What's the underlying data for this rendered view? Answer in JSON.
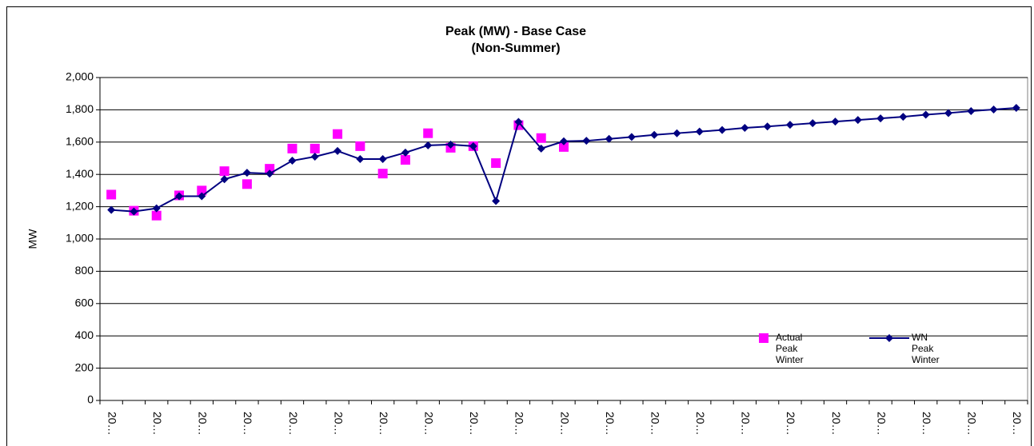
{
  "chart_data": {
    "type": "line",
    "title": "Peak (MW) - Base Case",
    "subtitle": "(Non-Summer)",
    "y_label": "MW",
    "categories": [
      "20…",
      null,
      "20…",
      null,
      "20…",
      null,
      "20…",
      null,
      "20…",
      null,
      "20…",
      null,
      "20…",
      null,
      "20…",
      null,
      "20…",
      null,
      "20…",
      null,
      "20…",
      null,
      "20…",
      null,
      "20…",
      null,
      "20…",
      null,
      "20…",
      null,
      "20…",
      null,
      "20…",
      null,
      "20…",
      null,
      "20…",
      null,
      "20…",
      null,
      "20…"
    ],
    "series": [
      {
        "name": "Actual Peak Winter",
        "color": "#ff00ff",
        "marker": "square",
        "line": false,
        "values": [
          1275,
          1175,
          1145,
          1270,
          1300,
          1420,
          1340,
          1435,
          1560,
          1560,
          1650,
          1575,
          1405,
          1490,
          1655,
          1565,
          1575,
          1470,
          1705,
          1625,
          1570,
          null,
          null,
          null,
          null,
          null,
          null,
          null,
          null,
          null,
          null,
          null,
          null,
          null,
          null,
          null,
          null,
          null,
          null,
          null,
          null
        ]
      },
      {
        "name": "WN Peak Winter",
        "color": "#000080",
        "marker": "diamond",
        "line": true,
        "values": [
          1180,
          1170,
          1190,
          1265,
          1265,
          1370,
          1410,
          1405,
          1485,
          1510,
          1545,
          1495,
          1495,
          1535,
          1580,
          1585,
          1575,
          1235,
          1725,
          1560,
          1605,
          1608,
          1620,
          1632,
          1645,
          1655,
          1665,
          1675,
          1688,
          1697,
          1707,
          1717,
          1727,
          1737,
          1747,
          1757,
          1770,
          1780,
          1792,
          1802,
          1812
        ]
      }
    ],
    "ylim": [
      0,
      2000
    ],
    "yticks": [
      0,
      200,
      400,
      600,
      800,
      {
        "value": 1000,
        "label": "1,000"
      },
      {
        "value": 1200,
        "label": "1,200"
      },
      {
        "value": 1400,
        "label": "1,400"
      },
      {
        "value": 1600,
        "label": "1,600"
      },
      {
        "value": 1800,
        "label": "1,800"
      },
      {
        "value": 2000,
        "label": "2,000"
      }
    ],
    "grid": true,
    "legend": "lower right"
  }
}
